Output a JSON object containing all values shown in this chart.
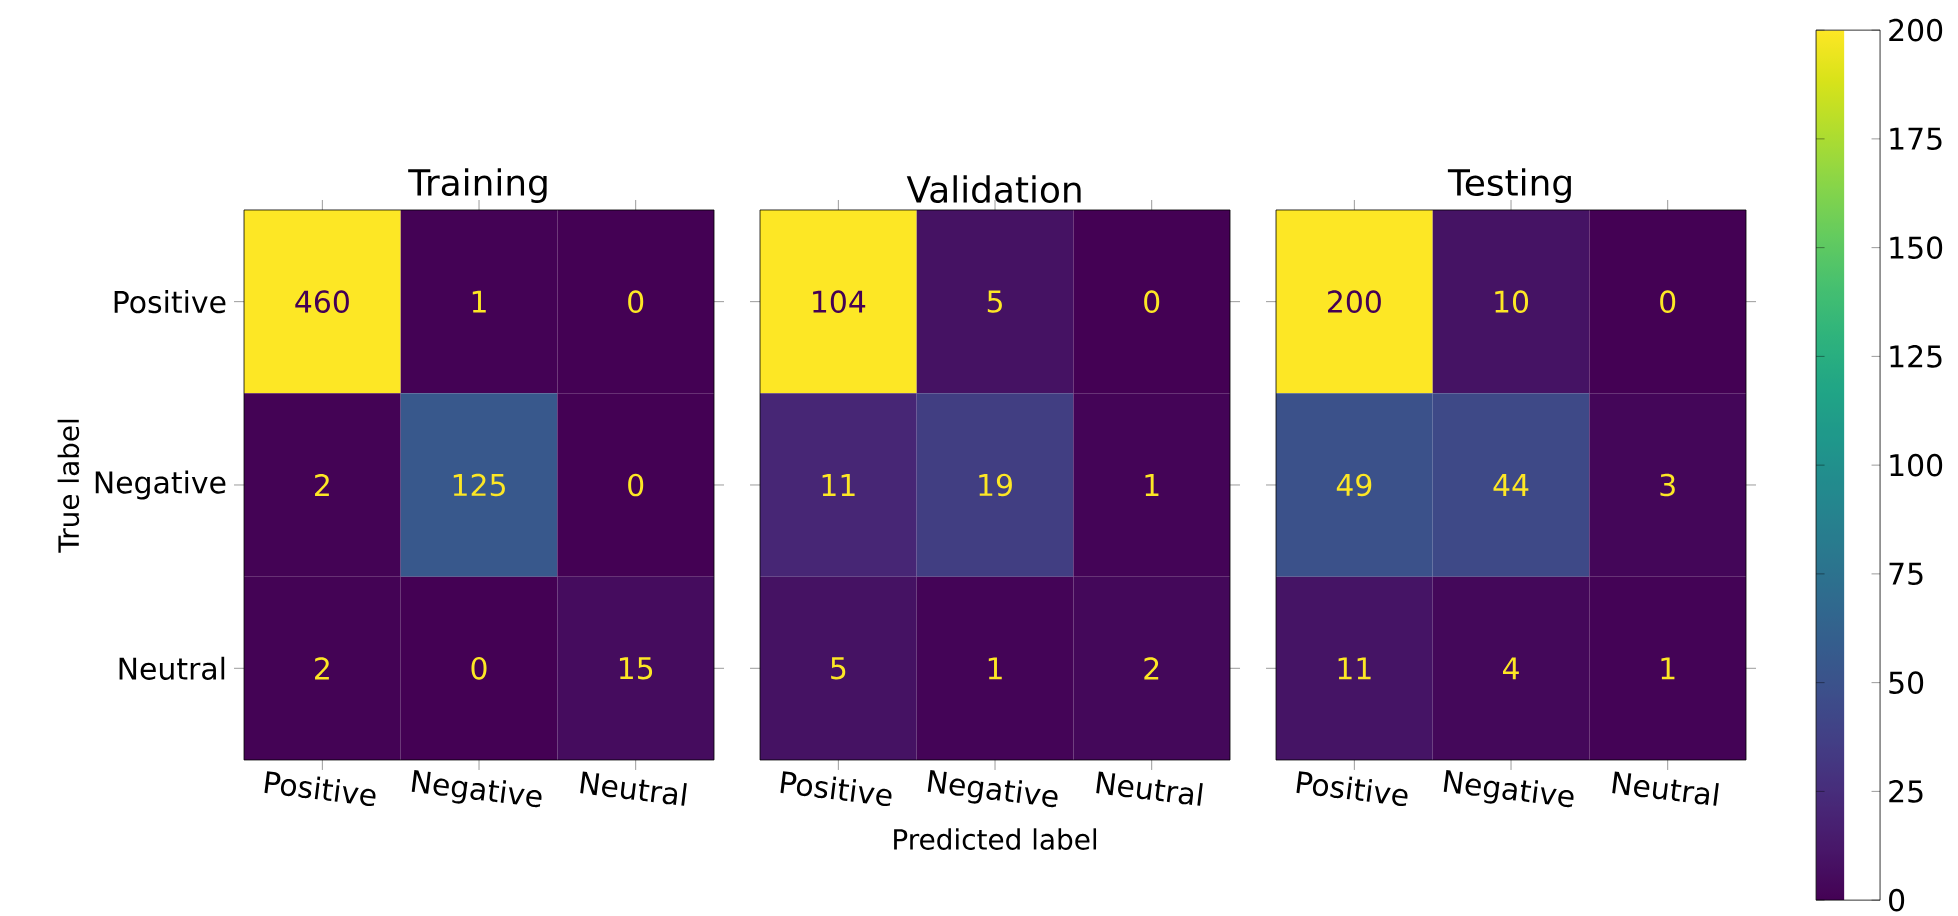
{
  "chart_data": [
    {
      "type": "heatmap",
      "title": "Training",
      "ylabel": "True label",
      "data_labels": true,
      "categories": [
        "Positive",
        "Negative",
        "Neutral"
      ],
      "y_categories": [
        "Positive",
        "Negative",
        "Neutral"
      ],
      "cells": [
        [
          460,
          1,
          0
        ],
        [
          2,
          125,
          0
        ],
        [
          2,
          0,
          15
        ]
      ]
    },
    {
      "type": "heatmap",
      "title": "Validation",
      "xlabel": "Predicted label",
      "data_labels": true,
      "categories": [
        "Positive",
        "Negative",
        "Neutral"
      ],
      "y_categories": [
        null,
        null,
        null
      ],
      "tick_labels": "x",
      "cells": [
        [
          104,
          5,
          0
        ],
        [
          11,
          19,
          1
        ],
        [
          5,
          1,
          2
        ]
      ]
    },
    {
      "type": "heatmap",
      "title": "Testing",
      "data_labels": true,
      "categories": [
        "Positive",
        "Negative",
        "Neutral"
      ],
      "y_categories": [
        null,
        null,
        null
      ],
      "tick_labels": "x",
      "cells": [
        [
          200,
          10,
          0
        ],
        [
          49,
          44,
          3
        ],
        [
          11,
          4,
          1
        ]
      ],
      "clim": [
        0,
        200
      ],
      "cticks": [
        0,
        25,
        50,
        75,
        100,
        125,
        150,
        175,
        200
      ]
    }
  ]
}
